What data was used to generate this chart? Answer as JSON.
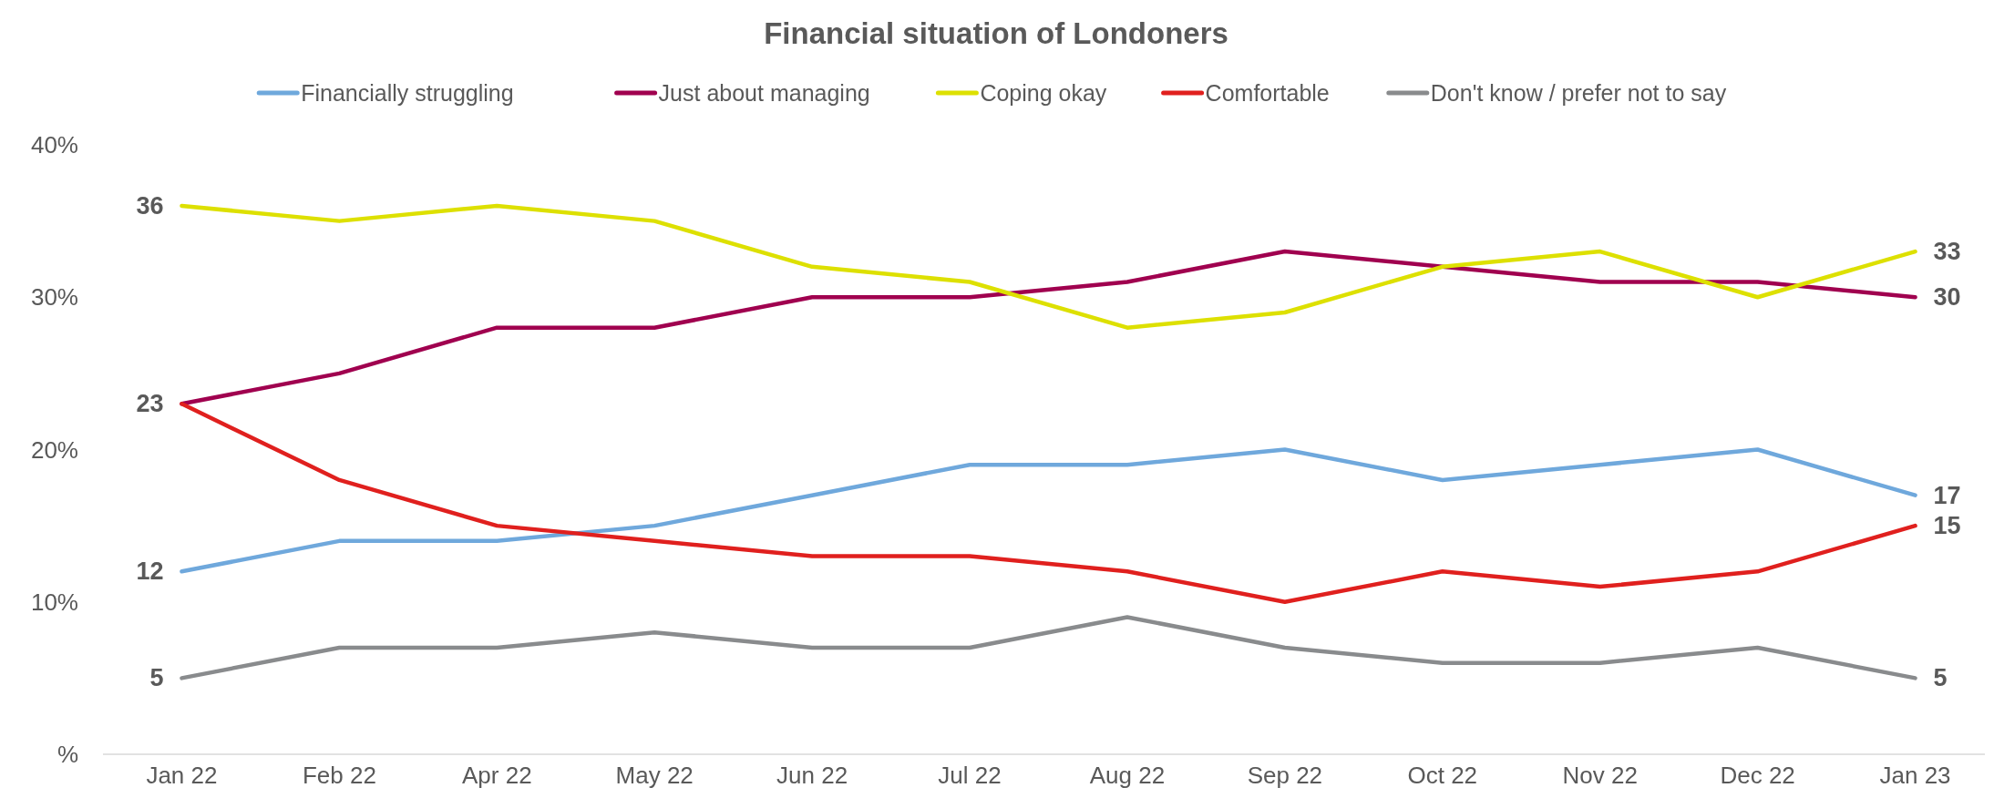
{
  "chart_data": {
    "type": "line",
    "title": "Financial situation of Londoners",
    "categories": [
      "Jan 22",
      "Feb 22",
      "Apr 22",
      "May 22",
      "Jun 22",
      "Jul 22",
      "Aug 22",
      "Sep 22",
      "Oct 22",
      "Nov 22",
      "Dec 22",
      "Jan 23"
    ],
    "ylim": [
      0,
      40
    ],
    "yticks": [
      {
        "value": 0,
        "label": "%"
      },
      {
        "value": 10,
        "label": "10%"
      },
      {
        "value": 20,
        "label": "20%"
      },
      {
        "value": 30,
        "label": "30%"
      },
      {
        "value": 40,
        "label": "40%"
      }
    ],
    "grid": false,
    "legend": "top",
    "marker": "none",
    "line_style": "solid",
    "series": [
      {
        "name": "Financially struggling",
        "color": "#6fa8dc",
        "values": [
          12,
          14,
          14,
          15,
          17,
          19,
          19,
          20,
          18,
          19,
          20,
          17
        ],
        "value_labels": [
          "12",
          null,
          null,
          null,
          null,
          null,
          null,
          null,
          null,
          null,
          null,
          "17"
        ]
      },
      {
        "name": "Just about managing",
        "color": "#a0004f",
        "values": [
          23,
          25,
          28,
          28,
          30,
          30,
          31,
          33,
          32,
          31,
          31,
          30
        ],
        "value_labels": [
          "23",
          null,
          null,
          null,
          null,
          null,
          null,
          null,
          null,
          null,
          null,
          "30"
        ]
      },
      {
        "name": "Coping okay",
        "color": "#dde000",
        "values": [
          36,
          35,
          36,
          35,
          32,
          31,
          28,
          29,
          32,
          33,
          30,
          33
        ],
        "value_labels": [
          "36",
          null,
          null,
          null,
          null,
          null,
          null,
          null,
          null,
          null,
          null,
          "33"
        ]
      },
      {
        "name": "Comfortable",
        "color": "#e0201e",
        "values": [
          23,
          18,
          15,
          14,
          13,
          13,
          12,
          10,
          12,
          11,
          12,
          15
        ],
        "value_labels": [
          null,
          null,
          null,
          null,
          null,
          null,
          null,
          null,
          null,
          null,
          null,
          "15"
        ]
      },
      {
        "name": "Don't know / prefer not to say",
        "color": "#898b8d",
        "values": [
          5,
          7,
          7,
          8,
          7,
          7,
          9,
          7,
          6,
          6,
          7,
          5
        ],
        "value_labels": [
          "5",
          null,
          null,
          null,
          null,
          null,
          null,
          null,
          null,
          null,
          null,
          "5"
        ]
      }
    ]
  }
}
